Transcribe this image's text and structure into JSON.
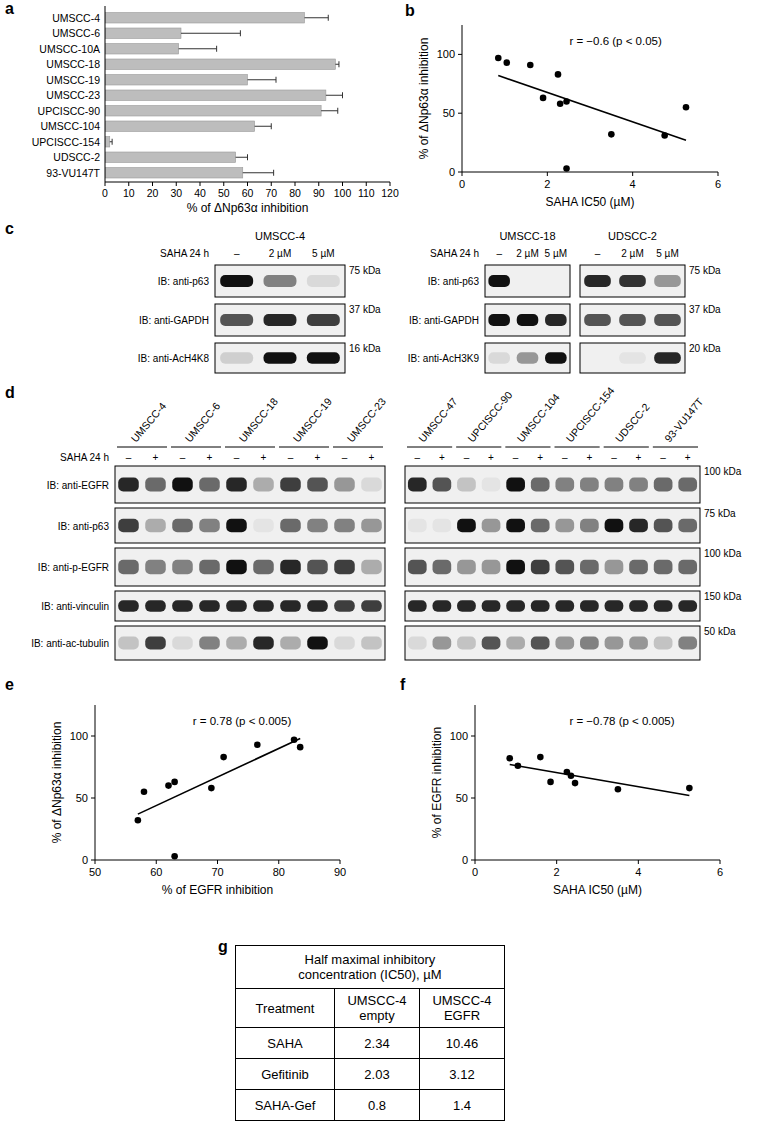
{
  "chart_data": [
    {
      "type": "bar",
      "panel_label": "a",
      "orientation": "horizontal",
      "categories": [
        "UMSCC-4",
        "UMSCC-6",
        "UMSCC-10A",
        "UMSCC-18",
        "UMSCC-19",
        "UMSCC-23",
        "UPCISCC-90",
        "UMSCC-104",
        "UPCISCC-154",
        "UDSCC-2",
        "93-VU147T"
      ],
      "values": [
        84,
        32,
        31,
        97,
        60,
        93,
        91,
        63,
        2,
        55,
        58
      ],
      "errors": [
        10,
        25,
        16,
        1.5,
        12,
        7,
        7,
        7,
        1,
        5,
        13
      ],
      "color": "#bdbdbd",
      "x_label": "% of ΔNp63α inhibition",
      "xlim": [
        0,
        120
      ],
      "xticks": [
        0,
        10,
        20,
        30,
        40,
        50,
        60,
        70,
        80,
        90,
        100,
        110,
        120
      ]
    },
    {
      "type": "scatter",
      "panel_label": "b",
      "series": [
        {
          "type": "scatter",
          "marker": "circle",
          "color": "#000000",
          "x": [
            0.85,
            1.05,
            1.6,
            2.25,
            1.9,
            2.3,
            2.45,
            2.45,
            3.5,
            4.75,
            5.25
          ],
          "values": [
            97,
            93,
            91,
            83,
            63,
            58,
            60,
            3,
            32,
            31,
            55
          ]
        },
        {
          "type": "line",
          "line_style": "solid",
          "color": "#000000",
          "x": [
            0.85,
            5.25
          ],
          "values": [
            82,
            27
          ]
        }
      ],
      "annotation": "r = −0.6 (p < 0.05)",
      "x_label": "SAHA IC50 (µM)",
      "y_label": "% of ΔNp63α inhibition",
      "xlim": [
        0,
        6
      ],
      "xticks": [
        0,
        2,
        4,
        6
      ],
      "ylim": [
        0,
        125
      ],
      "yticks": [
        0,
        50,
        100
      ]
    },
    {
      "type": "scatter",
      "panel_label": "e",
      "series": [
        {
          "type": "scatter",
          "marker": "circle",
          "color": "#000000",
          "x": [
            57,
            58,
            62,
            63,
            63,
            69,
            71,
            76.5,
            82.5,
            83.5
          ],
          "values": [
            32,
            55,
            60,
            63,
            3,
            58,
            83,
            93,
            97,
            91
          ]
        },
        {
          "type": "line",
          "line_style": "solid",
          "color": "#000000",
          "x": [
            57,
            83.5
          ],
          "values": [
            37,
            98
          ]
        }
      ],
      "annotation": "r = 0.78 (p < 0.005)",
      "x_label": "% of EGFR inhibition",
      "y_label": "% of ΔNp63α inhibition",
      "xlim": [
        50,
        90
      ],
      "xticks": [
        50,
        60,
        70,
        80,
        90
      ],
      "ylim": [
        0,
        125
      ],
      "yticks": [
        0,
        50,
        100
      ]
    },
    {
      "type": "scatter",
      "panel_label": "f",
      "series": [
        {
          "type": "scatter",
          "marker": "circle",
          "color": "#000000",
          "x": [
            0.85,
            1.05,
            1.6,
            1.85,
            2.25,
            2.35,
            2.45,
            3.5,
            5.25
          ],
          "values": [
            82,
            76,
            83,
            63,
            71,
            68,
            62,
            57,
            58
          ]
        },
        {
          "type": "line",
          "line_style": "solid",
          "color": "#000000",
          "x": [
            0.85,
            5.25
          ],
          "values": [
            77,
            52
          ]
        }
      ],
      "annotation": "r = −0.78 (p < 0.005)",
      "x_label": "SAHA IC50 (µM)",
      "y_label": "% of EGFR inhibition",
      "xlim": [
        0,
        6
      ],
      "xticks": [
        0,
        2,
        4,
        6
      ],
      "ylim": [
        0,
        125
      ],
      "yticks": [
        0,
        50,
        100
      ]
    }
  ],
  "blots": {
    "c": {
      "panel_label": "c",
      "groups": [
        {
          "title": "UMSCC-4",
          "treatment_label": "SAHA 24 h",
          "lanes": [
            "–",
            "2 µM",
            "5 µM"
          ],
          "rows": [
            {
              "label": "IB: anti-p63",
              "mw": "75 kDa",
              "bands": [
                1,
                0.5,
                0.1
              ]
            },
            {
              "label": "IB: anti-GAPDH",
              "mw": "37 kDa",
              "bands": [
                0.7,
                0.9,
                0.8
              ]
            },
            {
              "label": "IB: anti-AcH4K8",
              "mw": "16 kDa",
              "bands": [
                0.15,
                1,
                1
              ]
            }
          ]
        },
        {
          "title": "UMSCC-18",
          "treatment_label": "SAHA 24 h",
          "lanes": [
            "–",
            "2 µM",
            "5 µM"
          ],
          "rows": [
            {
              "label": "IB: anti-p63",
              "bands": [
                1,
                0,
                0
              ]
            },
            {
              "label": "IB: anti-GAPDH",
              "bands": [
                1,
                1,
                0.9
              ]
            },
            {
              "label": "IB: anti-AcH3K9",
              "bands": [
                0.1,
                0.4,
                1
              ]
            }
          ]
        },
        {
          "title": "UDSCC-2",
          "lanes": [
            "–",
            "2 µM",
            "5 µM"
          ],
          "rows": [
            {
              "mw": "75 kDa",
              "bands": [
                0.9,
                0.85,
                0.4
              ]
            },
            {
              "mw": "37 kDa",
              "bands": [
                0.7,
                0.7,
                0.7
              ]
            },
            {
              "mw": "20 kDa",
              "bands": [
                0,
                0.05,
                0.9
              ]
            }
          ]
        }
      ]
    },
    "d": {
      "panel_label": "d",
      "lanes": [
        "–",
        "+"
      ],
      "groups": [
        {
          "treatment_label": "SAHA 24 h",
          "cell_lines": [
            "UMSCC-4",
            "UMSCC-6",
            "UMSCC-18",
            "UMSCC-19",
            "UMSCC-23"
          ],
          "rows": [
            {
              "label": "IB: anti-EGFR",
              "bands": [
                0.9,
                0.6,
                1,
                0.6,
                0.9,
                0.3,
                0.8,
                0.7,
                0.4,
                0.1
              ]
            },
            {
              "label": "IB: anti-p63",
              "bands": [
                0.8,
                0.3,
                0.6,
                0.5,
                1,
                0.05,
                0.6,
                0.5,
                0.5,
                0.4
              ]
            },
            {
              "label": "IB: anti-p-EGFR",
              "bands": [
                0.6,
                0.5,
                0.5,
                0.6,
                1,
                0.6,
                0.9,
                0.7,
                0.8,
                0.3
              ]
            },
            {
              "label": "IB: anti-vinculin",
              "bands": [
                0.9,
                0.9,
                0.9,
                0.9,
                0.9,
                0.9,
                0.9,
                0.9,
                0.8,
                0.8
              ]
            },
            {
              "label": "IB: anti-ac-tubulin",
              "bands": [
                0.2,
                0.8,
                0.1,
                0.5,
                0.3,
                0.9,
                0.3,
                1,
                0.1,
                0.2
              ]
            }
          ]
        },
        {
          "cell_lines": [
            "UMSCC-47",
            "UPCISCC-90",
            "UMSCC-104",
            "UPCISCC-154",
            "UDSCC-2",
            "93-VU147T"
          ],
          "rows": [
            {
              "mw": "100 kDa",
              "bands": [
                0.9,
                0.7,
                0.2,
                0.05,
                1,
                0.6,
                0.5,
                0.5,
                0.5,
                0.5,
                0.6,
                0.6
              ]
            },
            {
              "mw": "75 kDa",
              "bands": [
                0.05,
                0.05,
                1,
                0.4,
                1,
                0.6,
                0.4,
                0.5,
                1,
                0.9,
                0.7,
                0.6
              ]
            },
            {
              "mw": "100 kDa",
              "bands": [
                0.7,
                0.6,
                0.4,
                0.4,
                1,
                0.8,
                0.7,
                0.6,
                0.4,
                0.6,
                0.6,
                0.6
              ]
            },
            {
              "mw": "150 kDa",
              "bands": [
                0.9,
                0.9,
                0.9,
                0.9,
                0.9,
                0.9,
                0.9,
                0.9,
                0.9,
                0.9,
                0.9,
                0.9
              ]
            },
            {
              "mw": "50 kDa",
              "bands": [
                0.1,
                0.4,
                0.2,
                0.7,
                0.3,
                0.7,
                0.4,
                0.5,
                0.4,
                0.4,
                0.2,
                0.5
              ]
            }
          ]
        }
      ]
    }
  },
  "table": {
    "panel_label": "g",
    "title": "Half maximal inhibitory concentration (IC50), µM",
    "header": [
      "Treatment",
      "UMSCC-4 empty",
      "UMSCC-4 EGFR"
    ],
    "rows": [
      [
        "SAHA",
        "2.34",
        "10.46"
      ],
      [
        "Gefitinib",
        "2.03",
        "3.12"
      ],
      [
        "SAHA-Gef",
        "0.8",
        "1.4"
      ]
    ]
  }
}
